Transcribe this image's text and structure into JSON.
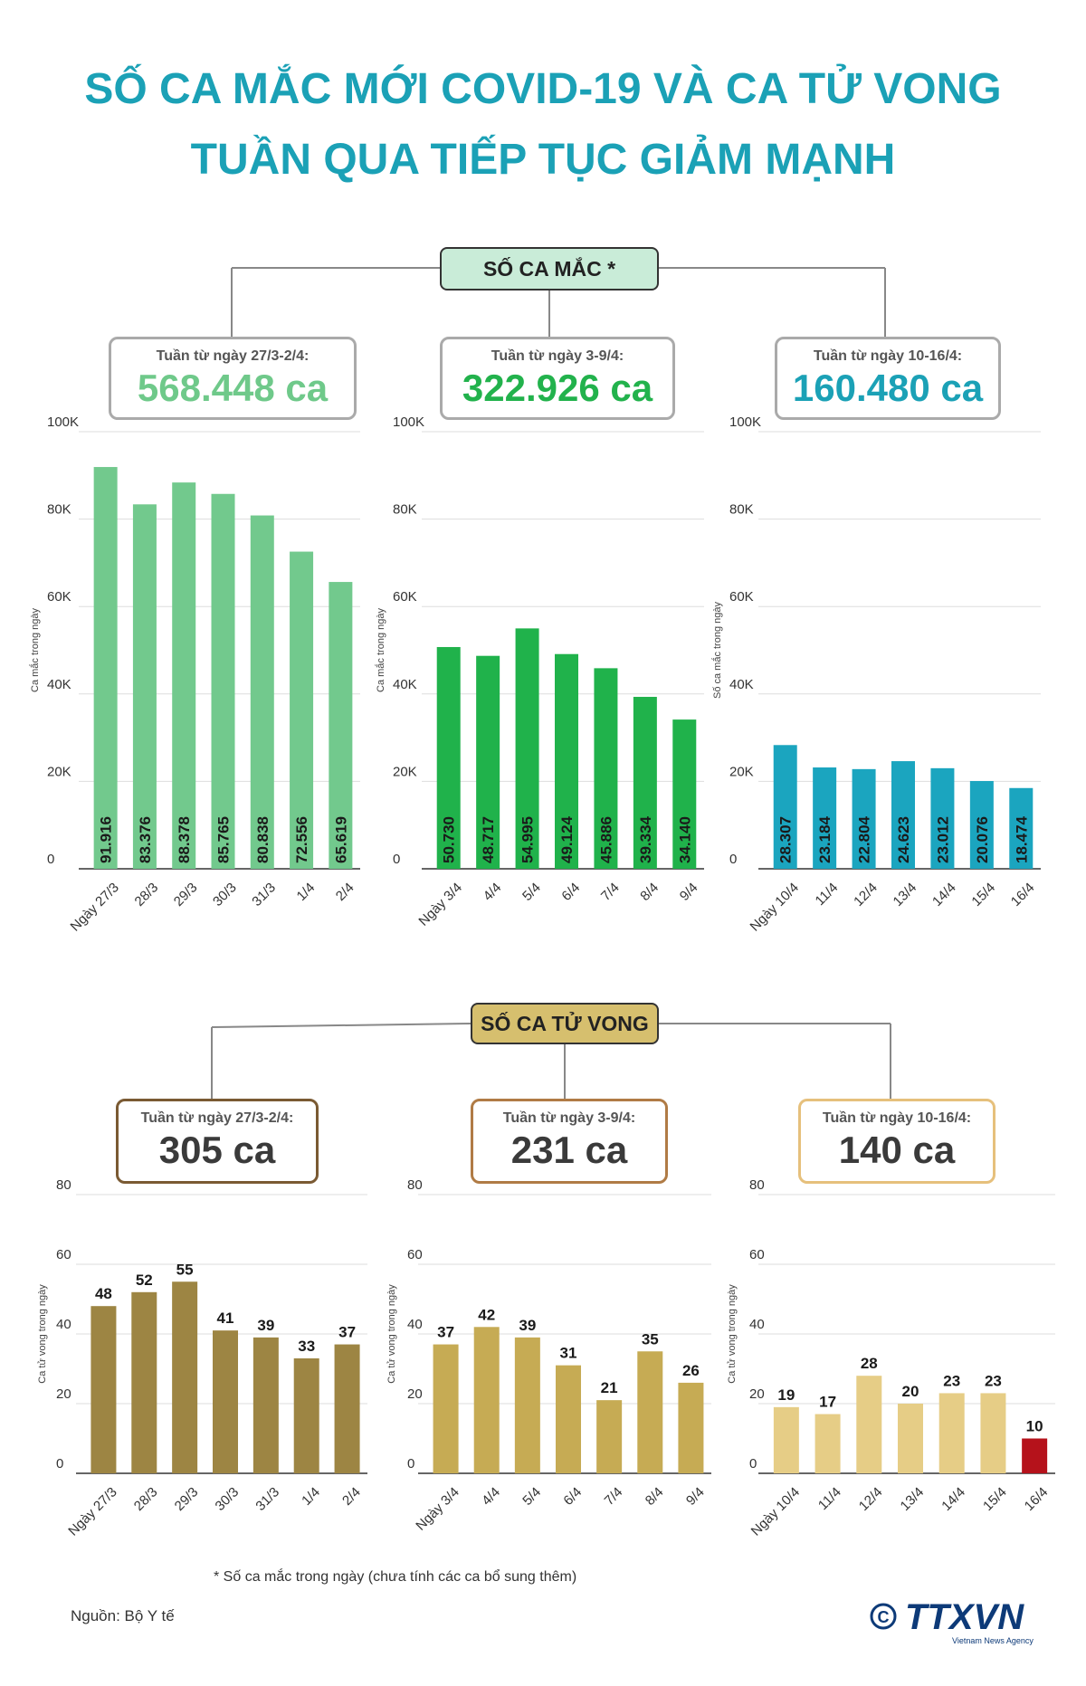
{
  "title": {
    "line1": "SỐ CA MẮC MỚI COVID-19 VÀ CA TỬ VONG",
    "line2": "TUẦN QUA TIẾP TỤC GIẢM MẠNH"
  },
  "colors": {
    "title": "#1ba1b6",
    "cases_header_bg": "#c9ecd8",
    "deaths_header_bg": "#d6bf6e",
    "death_highlight": "#b5121b"
  },
  "cases_section": {
    "header": "SỐ CA MẮC *",
    "panels": [
      {
        "total_label": "Tuần từ ngày 27/3-2/4:",
        "total_value": "568.448 ca",
        "value_color": "#6fc98a",
        "box_border": "#6fc98a"
      },
      {
        "total_label": "Tuần từ ngày 3-9/4:",
        "total_value": "322.926 ca",
        "value_color": "#22b24c",
        "box_border": "#22b24c"
      },
      {
        "total_label": "Tuần từ ngày 10-16/4:",
        "total_value": "160.480 ca",
        "value_color": "#1ba1b6",
        "box_border": "#1ba1b6"
      }
    ]
  },
  "deaths_section": {
    "header": "SỐ CA TỬ VONG",
    "panels": [
      {
        "total_label": "Tuần từ ngày 27/3-2/4:",
        "total_value": "305 ca",
        "box_border": "#7a5a33"
      },
      {
        "total_label": "Tuần từ ngày 3-9/4:",
        "total_value": "231 ca",
        "box_border": "#b07b45"
      },
      {
        "total_label": "Tuần từ ngày 10-16/4:",
        "total_value": "140 ca",
        "box_border": "#e6c07c"
      }
    ]
  },
  "chart_data": [
    {
      "type": "bar",
      "ylabel": "Ca mắc trong ngày",
      "ylim": [
        0,
        100000
      ],
      "yticks": [
        "0",
        "20K",
        "40K",
        "60K",
        "80K",
        "100K"
      ],
      "categories": [
        "Ngày 27/3",
        "28/3",
        "29/3",
        "30/3",
        "31/3",
        "1/4",
        "2/4"
      ],
      "values": [
        91916,
        83376,
        88378,
        85765,
        80838,
        72556,
        65619
      ],
      "value_labels": [
        "91.916",
        "83.376",
        "88.378",
        "85.765",
        "80.838",
        "72.556",
        "65.619"
      ],
      "bar_color": "#72c98d",
      "grid": true
    },
    {
      "type": "bar",
      "ylabel": "Ca mắc trong ngày",
      "ylim": [
        0,
        100000
      ],
      "yticks": [
        "0",
        "20K",
        "40K",
        "60K",
        "80K",
        "100K"
      ],
      "categories": [
        "Ngày 3/4",
        "4/4",
        "5/4",
        "6/4",
        "7/4",
        "8/4",
        "9/4"
      ],
      "values": [
        50730,
        48717,
        54995,
        49124,
        45886,
        39334,
        34140
      ],
      "value_labels": [
        "50.730",
        "48.717",
        "54.995",
        "49.124",
        "45.886",
        "39.334",
        "34.140"
      ],
      "bar_color": "#20b24b",
      "grid": true
    },
    {
      "type": "bar",
      "ylabel": "Số ca mắc trong ngày",
      "ylim": [
        0,
        100000
      ],
      "yticks": [
        "0",
        "20K",
        "40K",
        "60K",
        "80K",
        "100K"
      ],
      "categories": [
        "Ngày 10/4",
        "11/4",
        "12/4",
        "13/4",
        "14/4",
        "15/4",
        "16/4"
      ],
      "values": [
        28307,
        23184,
        22804,
        24623,
        23012,
        20076,
        18474
      ],
      "value_labels": [
        "28.307",
        "23.184",
        "22.804",
        "24.623",
        "23.012",
        "20.076",
        "18.474"
      ],
      "bar_color": "#1ba5bf",
      "grid": true
    },
    {
      "type": "bar",
      "ylabel": "Ca tử vong trong ngày",
      "ylim": [
        0,
        80
      ],
      "yticks": [
        "0",
        "20",
        "40",
        "60",
        "80"
      ],
      "categories": [
        "Ngày 27/3",
        "28/3",
        "29/3",
        "30/3",
        "31/3",
        "1/4",
        "2/4"
      ],
      "values": [
        48,
        52,
        55,
        41,
        39,
        33,
        37
      ],
      "value_labels": [
        "48",
        "52",
        "55",
        "41",
        "39",
        "33",
        "37"
      ],
      "bar_color": "#9d8543",
      "grid": true
    },
    {
      "type": "bar",
      "ylabel": "Ca tử vong trong ngày",
      "ylim": [
        0,
        80
      ],
      "yticks": [
        "0",
        "20",
        "40",
        "60",
        "80"
      ],
      "categories": [
        "Ngày 3/4",
        "4/4",
        "5/4",
        "6/4",
        "7/4",
        "8/4",
        "9/4"
      ],
      "values": [
        37,
        42,
        39,
        31,
        21,
        35,
        26
      ],
      "value_labels": [
        "37",
        "42",
        "39",
        "31",
        "21",
        "35",
        "26"
      ],
      "bar_color": "#c6ab54",
      "grid": true
    },
    {
      "type": "bar",
      "ylabel": "Ca tử vong trong ngày",
      "ylim": [
        0,
        80
      ],
      "yticks": [
        "0",
        "20",
        "40",
        "60",
        "80"
      ],
      "categories": [
        "Ngày 10/4",
        "11/4",
        "12/4",
        "13/4",
        "14/4",
        "15/4",
        "16/4"
      ],
      "values": [
        19,
        17,
        28,
        20,
        23,
        23,
        10
      ],
      "value_labels": [
        "19",
        "17",
        "28",
        "20",
        "23",
        "23",
        "10"
      ],
      "bar_color": "#e6cd86",
      "highlight_index": 6,
      "grid": true
    }
  ],
  "footnote": "* Số ca mắc trong ngày (chưa tính các ca bổ sung thêm)",
  "source": "Nguồn: Bộ Y tế",
  "logo": {
    "text": "TTXVN",
    "subtext": "Vietnam News Agency",
    "icon": "copyright-icon"
  }
}
